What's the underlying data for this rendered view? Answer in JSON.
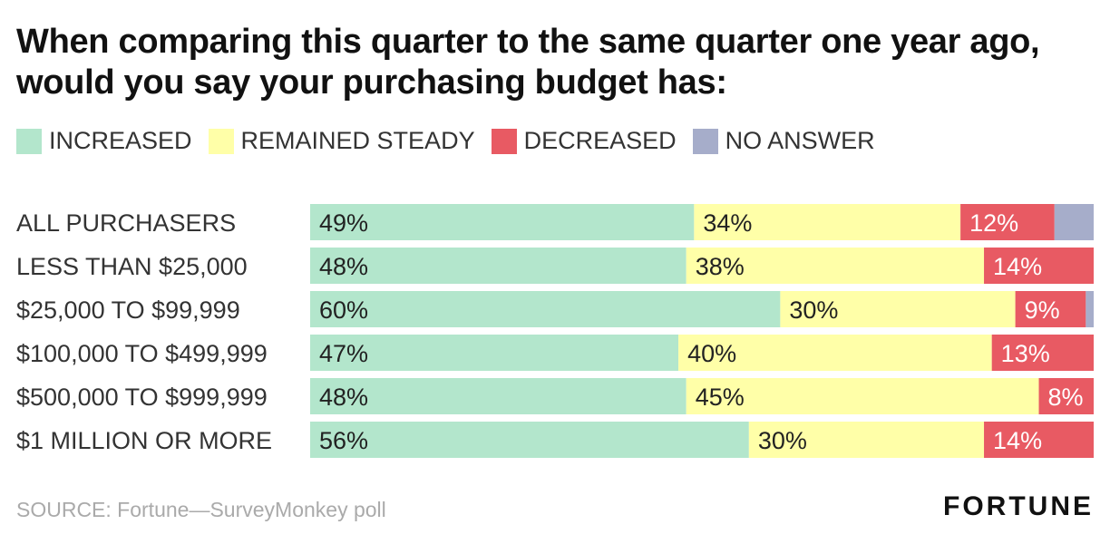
{
  "chart_data": {
    "type": "bar",
    "stacked": true,
    "orientation": "horizontal",
    "title": "When comparing this quarter to the same quarter one year ago, would you say your purchasing budget has:",
    "categories": [
      "ALL PURCHASERS",
      "LESS THAN $25,000",
      "$25,000 TO $99,999",
      "$100,000 TO $499,999",
      "$500,000 TO $999,999",
      "$1 MILLION OR MORE"
    ],
    "series": [
      {
        "name": "INCREASED",
        "color": "#b3e6cc",
        "values": [
          49,
          48,
          60,
          47,
          48,
          56
        ],
        "labels": [
          "49%",
          "48%",
          "60%",
          "47%",
          "48%",
          "56%"
        ]
      },
      {
        "name": "REMAINED STEADY",
        "color": "#ffffa8",
        "values": [
          34,
          38,
          30,
          40,
          45,
          30
        ],
        "labels": [
          "34%",
          "38%",
          "30%",
          "40%",
          "45%",
          "30%"
        ]
      },
      {
        "name": "DECREASED",
        "color": "#e85a63",
        "values": [
          12,
          14,
          9,
          13,
          8,
          14
        ],
        "labels": [
          "12%",
          "14%",
          "9%",
          "13%",
          "8%",
          "14%"
        ]
      },
      {
        "name": "NO ANSWER",
        "color": "#a6adca",
        "values": [
          5,
          1,
          1,
          0,
          0,
          0
        ],
        "labels": [
          "",
          "",
          "",
          "",
          "",
          ""
        ]
      }
    ],
    "xlim": [
      0,
      100
    ],
    "legend": "top-left",
    "grid": false
  },
  "source": "SOURCE: Fortune—SurveyMonkey poll",
  "logo_text": "FORTUNE"
}
